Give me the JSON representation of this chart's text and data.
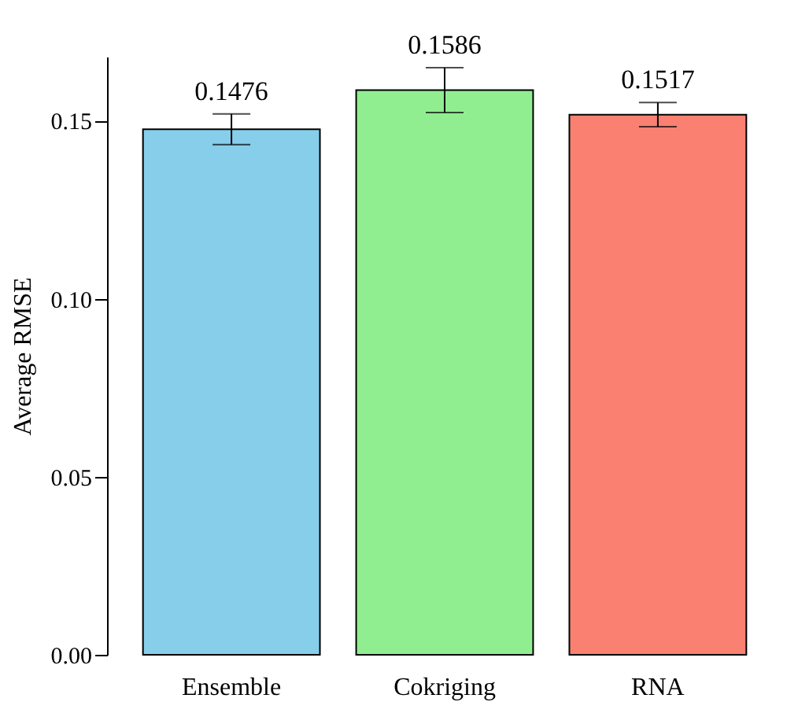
{
  "chart_data": {
    "type": "bar",
    "ylabel": "Average RMSE",
    "categories": [
      "Ensemble",
      "Cokriging",
      "RNA"
    ],
    "values": [
      0.1476,
      0.1586,
      0.1517
    ],
    "errors": [
      0.0043,
      0.0063,
      0.0034
    ],
    "colors": [
      "#87ceeb",
      "#90ee90",
      "#fa8072"
    ],
    "ylim": [
      0,
      0.168
    ],
    "yticks": [
      {
        "value": 0,
        "label": "0.00"
      },
      {
        "value": 0.05,
        "label": "0.05"
      },
      {
        "value": 0.1,
        "label": "0.10"
      },
      {
        "value": 0.15,
        "label": "0.15"
      }
    ],
    "data_labels": true,
    "grid": false
  }
}
